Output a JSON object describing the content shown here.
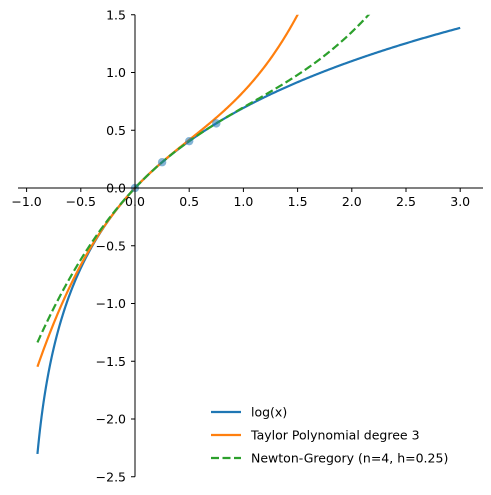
{
  "chart_data": {
    "type": "line",
    "title": "",
    "xlabel": "",
    "ylabel": "",
    "xlim": [
      -1.05,
      3.2
    ],
    "ylim": [
      -2.5,
      1.5
    ],
    "spines": "centered at origin (left and bottom only)",
    "grid": false,
    "legend_position": "lower-right",
    "x_ticks": [
      "−1.0",
      "−0.5",
      "0.0",
      "0.5",
      "1.0",
      "1.5",
      "2.0",
      "2.5",
      "3.0"
    ],
    "x_tick_values": [
      -1.0,
      -0.5,
      0.0,
      0.5,
      1.0,
      1.5,
      2.0,
      2.5,
      3.0
    ],
    "y_ticks": [
      "−2.5",
      "−2.0",
      "−1.5",
      "−1.0",
      "−0.5",
      "0.0",
      "0.5",
      "1.0",
      "1.5"
    ],
    "y_tick_values": [
      -2.5,
      -2.0,
      -1.5,
      -1.0,
      -0.5,
      0.0,
      0.5,
      1.0,
      1.5
    ],
    "series": [
      {
        "name": "log(x)",
        "function": "ln(1+x)",
        "domain": [
          -0.9,
          3.0
        ],
        "color": "#1f77b4",
        "style": "solid"
      },
      {
        "name": "Taylor Polynomial degree 3",
        "function": "x - x^2/2 + x^3/3",
        "domain": [
          -0.9,
          3.0
        ],
        "color": "#ff7f0e",
        "style": "solid"
      },
      {
        "name": "Newton-Gregory (n=4, h=0.25)",
        "function": "Newton forward-difference interpolant of ln(1+x) on nodes 0, 0.25, 0.5, 0.75",
        "domain": [
          -0.9,
          3.0
        ],
        "color": "#2ca02c",
        "style": "dashed"
      }
    ],
    "markers": {
      "color": "#1f77b4",
      "points": [
        {
          "x": 0.0,
          "y": 0.0
        },
        {
          "x": 0.25,
          "y": 0.2231
        },
        {
          "x": 0.5,
          "y": 0.4055
        },
        {
          "x": 0.75,
          "y": 0.5596
        }
      ]
    }
  }
}
